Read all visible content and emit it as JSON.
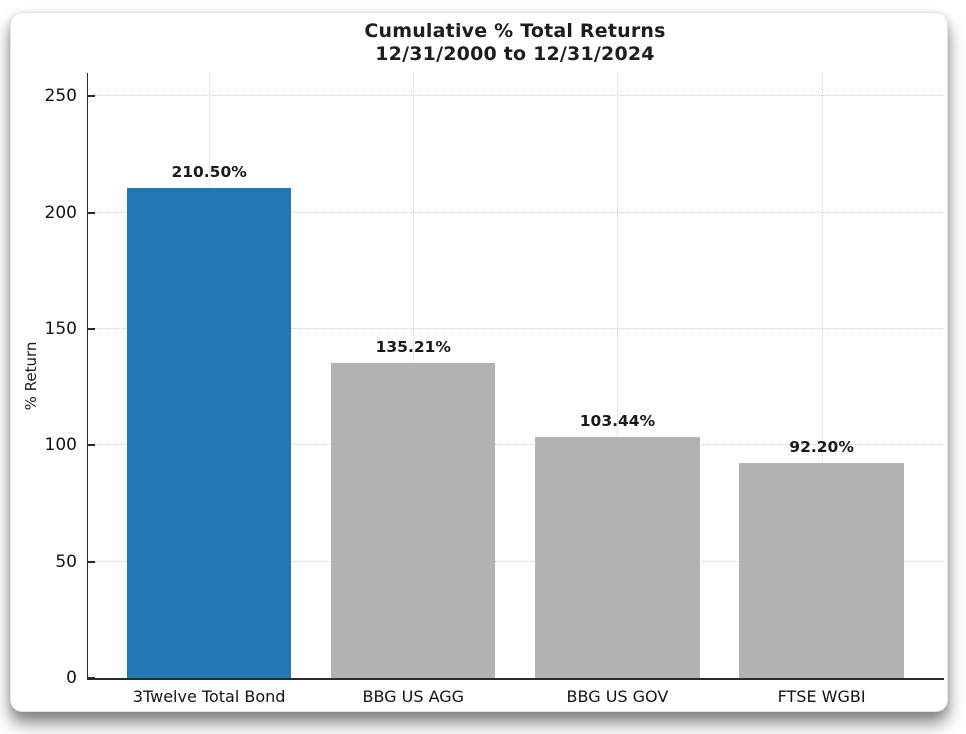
{
  "page": {
    "background": "#ffffff"
  },
  "chart_data": {
    "type": "bar",
    "title": "Cumulative % Total Returns",
    "subtitle": "12/31/2000 to 12/31/2024",
    "xlabel": "",
    "ylabel": "% Return",
    "categories": [
      "3Twelve Total Bond",
      "BBG US AGG",
      "BBG US GOV",
      "FTSE WGBI"
    ],
    "values": [
      210.5,
      135.21,
      103.44,
      92.2
    ],
    "value_labels": [
      "210.50%",
      "135.21%",
      "103.44%",
      "92.20%"
    ],
    "bar_colors": [
      "#2277b5",
      "#b2b2b2",
      "#b2b2b2",
      "#b2b2b2"
    ],
    "accent_color": "#2277b5",
    "neutral_bar_color": "#b2b2b2",
    "grid_color": "#cdcdcd",
    "axis_color": "#2b2b2b",
    "ylim": [
      0,
      260
    ],
    "yticks": [
      0,
      50,
      100,
      150,
      200,
      250
    ],
    "grid": "horizontal-and-vertical-dotted",
    "legend": "none"
  }
}
